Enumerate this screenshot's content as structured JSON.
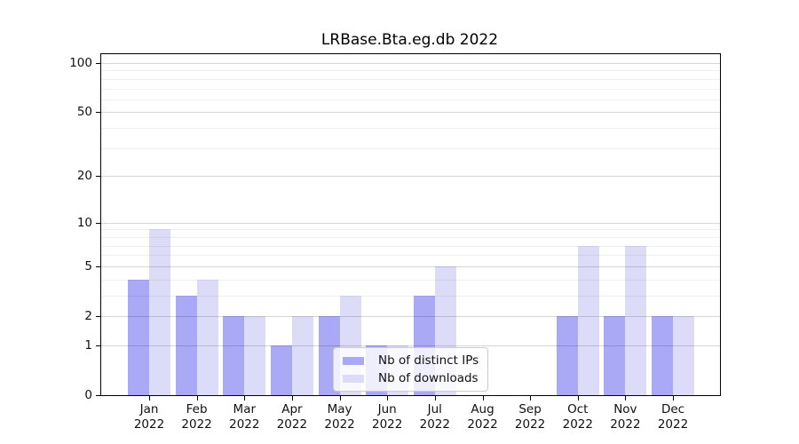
{
  "title": "LRBase.Bta.eg.db 2022",
  "chart_data": {
    "type": "bar",
    "title": "LRBase.Bta.eg.db 2022",
    "categories": [
      "Jan",
      "Feb",
      "Mar",
      "Apr",
      "May",
      "Jun",
      "Jul",
      "Aug",
      "Sep",
      "Oct",
      "Nov",
      "Dec"
    ],
    "category_year": "2022",
    "series": [
      {
        "name": "Nb of distinct IPs",
        "color": "#a9a9f6",
        "values": [
          4,
          3,
          2,
          1,
          2,
          1,
          3,
          0,
          0,
          2,
          2,
          2
        ]
      },
      {
        "name": "Nb of downloads",
        "color": "#dcdcf9",
        "values": [
          9,
          4,
          2,
          2,
          3,
          1,
          5,
          0,
          0,
          7,
          7,
          2
        ]
      }
    ],
    "yscale": "log1p",
    "yticks": [
      0,
      1,
      2,
      5,
      10,
      20,
      50,
      100
    ],
    "minor_yticks": [
      3,
      4,
      6,
      7,
      8,
      9,
      30,
      40,
      60,
      70,
      80,
      90
    ],
    "ylim": [
      0,
      113
    ],
    "grid": true,
    "legend_position": "lower center"
  }
}
